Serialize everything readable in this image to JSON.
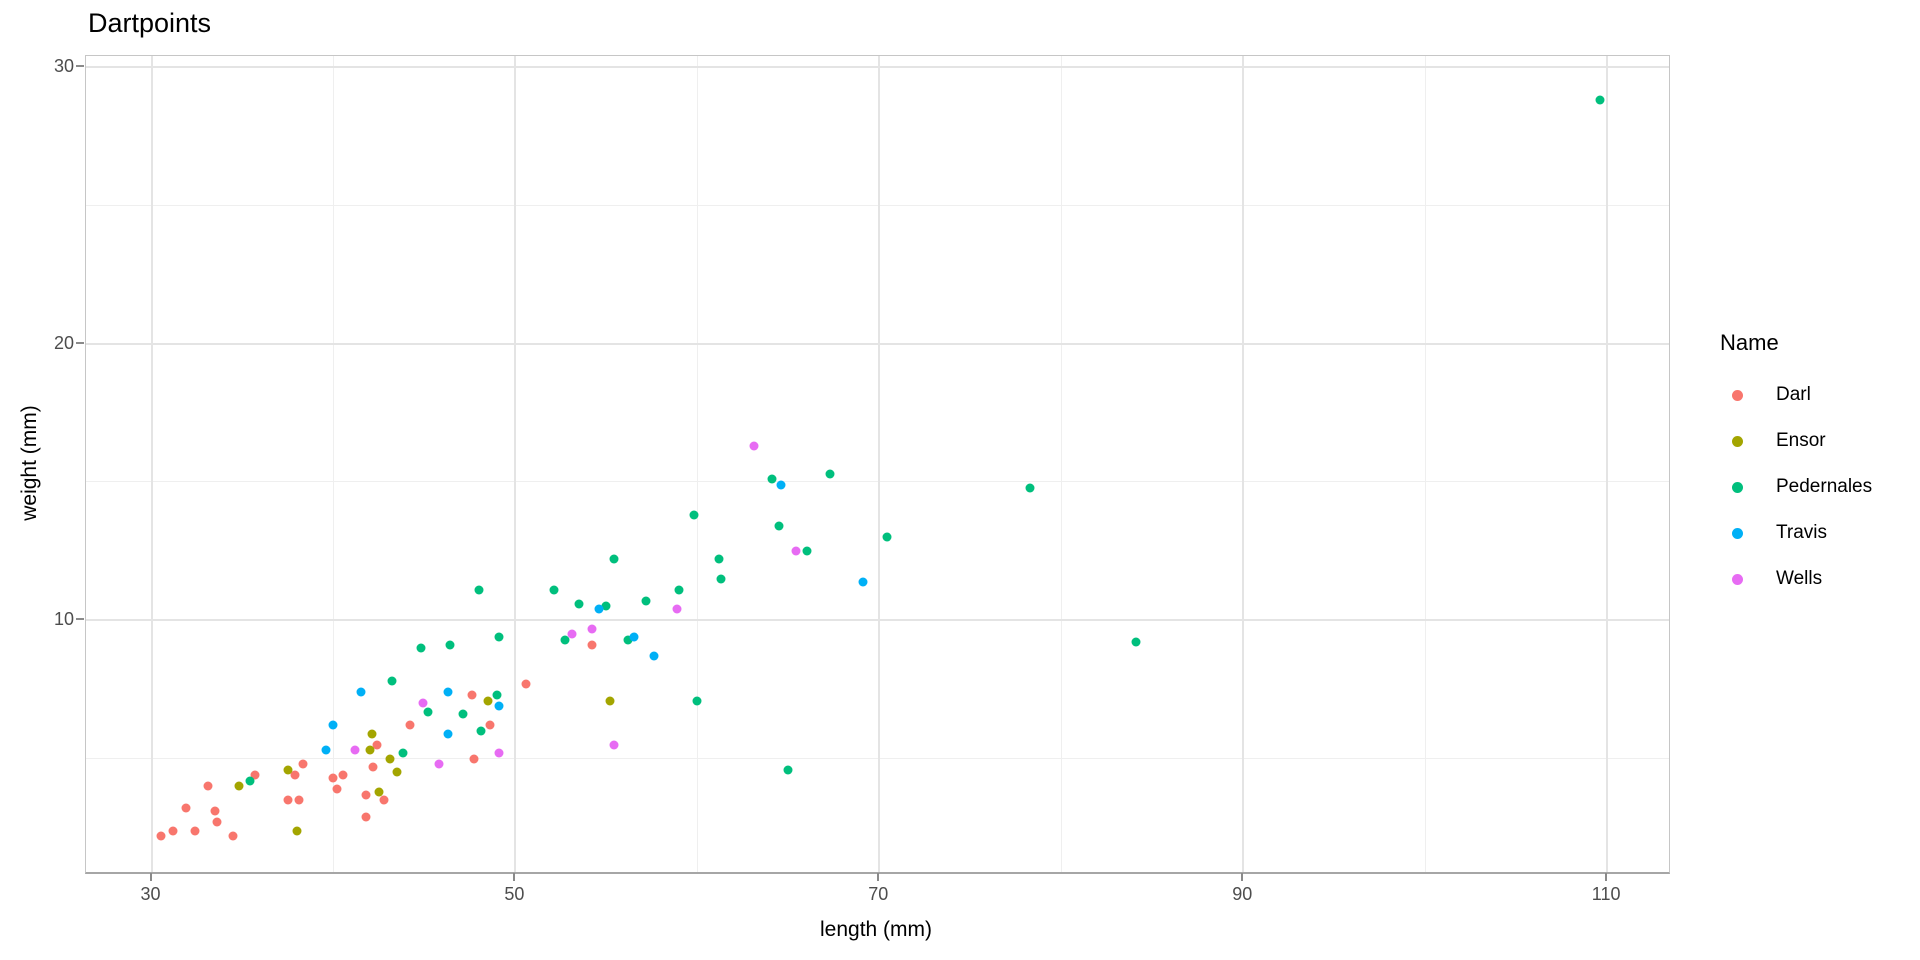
{
  "title": "Dartpoints",
  "legend": {
    "title": "Name",
    "entries": [
      {
        "label": "Darl",
        "color": "#F8766D"
      },
      {
        "label": "Ensor",
        "color": "#A3A500"
      },
      {
        "label": "Pedernales",
        "color": "#00BF7D"
      },
      {
        "label": "Travis",
        "color": "#00B0F6"
      },
      {
        "label": "Wells",
        "color": "#E76BF3"
      }
    ]
  },
  "chart_data": {
    "type": "scatter",
    "title": "Dartpoints",
    "xlabel": "length (mm)",
    "ylabel": "weight (mm)",
    "xlim": [
      26.4,
      113.4
    ],
    "ylim": [
      0.9,
      30.4
    ],
    "x_major_ticks": [
      30,
      50,
      70,
      90,
      110
    ],
    "x_minor_ticks": [
      40,
      60,
      80,
      100
    ],
    "y_major_ticks": [
      10,
      20,
      30
    ],
    "y_minor_ticks": [
      5,
      15,
      25
    ],
    "grid": true,
    "legend_position": "right",
    "legend_title": "Name",
    "series": [
      {
        "name": "Darl",
        "color": "#F8766D",
        "points": [
          [
            30.5,
            2.2
          ],
          [
            31.2,
            2.4
          ],
          [
            31.9,
            3.2
          ],
          [
            32.4,
            2.4
          ],
          [
            33.1,
            4.0
          ],
          [
            33.5,
            3.1
          ],
          [
            33.6,
            2.7
          ],
          [
            34.5,
            2.2
          ],
          [
            35.7,
            4.4
          ],
          [
            37.5,
            3.5
          ],
          [
            37.9,
            4.4
          ],
          [
            38.1,
            3.5
          ],
          [
            38.3,
            4.8
          ],
          [
            40.0,
            4.3
          ],
          [
            40.2,
            3.9
          ],
          [
            40.5,
            4.4
          ],
          [
            41.8,
            2.9
          ],
          [
            41.8,
            3.7
          ],
          [
            42.2,
            4.7
          ],
          [
            42.4,
            5.5
          ],
          [
            42.8,
            3.5
          ],
          [
            44.2,
            6.2
          ],
          [
            47.6,
            7.3
          ],
          [
            47.7,
            5.0
          ],
          [
            48.6,
            6.2
          ],
          [
            50.6,
            7.7
          ],
          [
            54.2,
            9.1
          ]
        ]
      },
      {
        "name": "Ensor",
        "color": "#A3A500",
        "points": [
          [
            34.8,
            4.0
          ],
          [
            37.5,
            4.6
          ],
          [
            38.0,
            2.4
          ],
          [
            42.0,
            5.3
          ],
          [
            42.1,
            5.9
          ],
          [
            42.5,
            3.8
          ],
          [
            43.1,
            5.0
          ],
          [
            43.5,
            4.5
          ],
          [
            48.5,
            7.1
          ],
          [
            55.2,
            7.1
          ]
        ]
      },
      {
        "name": "Pedernales",
        "color": "#00BF7D",
        "points": [
          [
            35.4,
            4.2
          ],
          [
            43.2,
            7.8
          ],
          [
            43.8,
            5.2
          ],
          [
            44.8,
            9.0
          ],
          [
            45.2,
            6.7
          ],
          [
            46.4,
            9.1
          ],
          [
            47.1,
            6.6
          ],
          [
            48.0,
            11.1
          ],
          [
            48.1,
            6.0
          ],
          [
            49.0,
            7.3
          ],
          [
            49.1,
            9.4
          ],
          [
            52.1,
            11.1
          ],
          [
            52.7,
            9.3
          ],
          [
            53.5,
            10.6
          ],
          [
            55.0,
            10.5
          ],
          [
            55.4,
            12.2
          ],
          [
            56.2,
            9.3
          ],
          [
            57.2,
            10.7
          ],
          [
            59.0,
            11.1
          ],
          [
            59.8,
            13.8
          ],
          [
            60.0,
            7.1
          ],
          [
            61.2,
            12.2
          ],
          [
            61.3,
            11.5
          ],
          [
            64.1,
            15.1
          ],
          [
            64.5,
            13.4
          ],
          [
            65.0,
            4.6
          ],
          [
            66.0,
            12.5
          ],
          [
            67.3,
            15.3
          ],
          [
            70.4,
            13.0
          ],
          [
            78.3,
            14.8
          ],
          [
            84.1,
            9.2
          ],
          [
            109.6,
            28.8
          ]
        ]
      },
      {
        "name": "Travis",
        "color": "#00B0F6",
        "points": [
          [
            39.6,
            5.3
          ],
          [
            40.0,
            6.2
          ],
          [
            41.5,
            7.4
          ],
          [
            46.3,
            5.9
          ],
          [
            46.3,
            7.4
          ],
          [
            49.1,
            6.9
          ],
          [
            54.6,
            10.4
          ],
          [
            56.5,
            9.4
          ],
          [
            57.6,
            8.7
          ],
          [
            64.6,
            14.9
          ],
          [
            69.1,
            11.4
          ]
        ]
      },
      {
        "name": "Wells",
        "color": "#E76BF3",
        "points": [
          [
            41.2,
            5.3
          ],
          [
            44.9,
            7.0
          ],
          [
            45.8,
            4.8
          ],
          [
            49.1,
            5.2
          ],
          [
            53.1,
            9.5
          ],
          [
            54.2,
            9.7
          ],
          [
            55.4,
            5.5
          ],
          [
            58.9,
            10.4
          ],
          [
            63.1,
            16.3
          ],
          [
            65.4,
            12.5
          ]
        ]
      }
    ]
  }
}
